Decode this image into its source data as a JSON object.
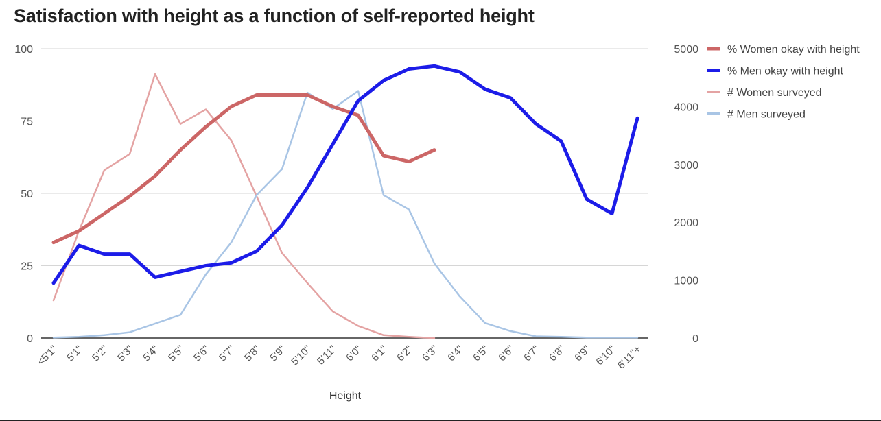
{
  "title": "Satisfaction with height as a function of self-reported height",
  "chart_data": {
    "type": "line",
    "title": "Satisfaction with height as a function of self-reported height",
    "xlabel": "Height",
    "ylabel_left": "",
    "ylabel_right": "",
    "categories": [
      "<5'1\"",
      "5'1\"",
      "5'2\"",
      "5'3\"",
      "5'4\"",
      "5'5\"",
      "5'6\"",
      "5'7\"",
      "5'8\"",
      "5'9\"",
      "5'10\"",
      "5'11\"",
      "6'0\"",
      "6'1\"",
      "6'2\"",
      "6'3\"",
      "6'4\"",
      "6'5\"",
      "6'6\"",
      "6'7\"",
      "6'8\"",
      "6'9\"",
      "6'10\"",
      "6'11\"+"
    ],
    "left_axis": {
      "range": [
        0,
        100
      ],
      "ticks": [
        0,
        25,
        50,
        75,
        100
      ]
    },
    "right_axis": {
      "range": [
        0,
        5000
      ],
      "ticks": [
        0,
        1000,
        2000,
        3000,
        4000,
        5000
      ]
    },
    "grid": true,
    "legend_position": "right",
    "series": [
      {
        "name": "% Women okay with height",
        "axis": "left",
        "color": "#cc6666",
        "width": 5,
        "values": [
          33,
          37,
          43,
          49,
          56,
          65,
          73,
          80,
          84,
          84,
          84,
          80,
          77,
          63,
          61,
          65,
          null,
          null,
          null,
          null,
          null,
          null,
          null,
          null
        ]
      },
      {
        "name": "% Men okay with height",
        "axis": "left",
        "color": "#1c1ce8",
        "width": 5,
        "values": [
          19,
          32,
          29,
          29,
          21,
          23,
          25,
          26,
          30,
          39,
          52,
          67,
          82,
          89,
          93,
          94,
          92,
          86,
          83,
          74,
          68,
          48,
          43,
          76
        ]
      },
      {
        "name": "# Women surveyed",
        "axis": "right",
        "color": "#e4a3a3",
        "width": 2.5,
        "values": [
          650,
          1850,
          2900,
          3180,
          4560,
          3700,
          3950,
          3420,
          2450,
          1470,
          950,
          460,
          210,
          50,
          20,
          0,
          null,
          null,
          null,
          null,
          null,
          null,
          null,
          null
        ]
      },
      {
        "name": "# Men surveyed",
        "axis": "right",
        "color": "#a9c5e5",
        "width": 2.5,
        "values": [
          10,
          20,
          50,
          100,
          250,
          400,
          1100,
          1650,
          2470,
          2920,
          4240,
          3960,
          4270,
          2470,
          2220,
          1290,
          720,
          260,
          120,
          30,
          20,
          10,
          10,
          10
        ]
      }
    ]
  }
}
